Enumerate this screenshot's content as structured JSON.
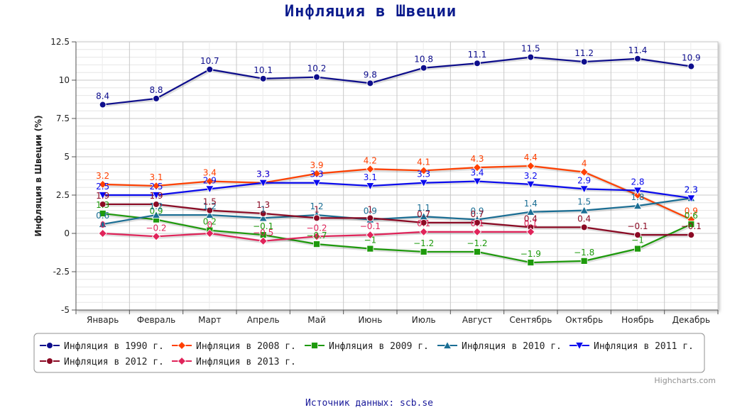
{
  "chart_data": {
    "type": "line",
    "title": "Инфляция в Швеции",
    "ylabel": "Инфляция в Швеции (%)",
    "xlabel": "",
    "ylim": [
      -5,
      12.5
    ],
    "yticks": [
      "12.5",
      "10",
      "7.5",
      "5",
      "2.5",
      "0",
      "-2.5",
      "-5"
    ],
    "categories": [
      "Январь",
      "Февраль",
      "Март",
      "Апрель",
      "Май",
      "Июнь",
      "Июль",
      "Август",
      "Сентябрь",
      "Октябрь",
      "Ноябрь",
      "Декабрь"
    ],
    "grid": true,
    "legend_position": "bottom",
    "series": [
      {
        "name": "Инфляция в 1990 г.",
        "color": "#0d0d8c",
        "marker": "circle",
        "values": [
          8.4,
          8.8,
          10.7,
          10.1,
          10.2,
          9.8,
          10.8,
          11.1,
          11.5,
          11.2,
          11.4,
          10.9
        ],
        "labels": [
          "8.4",
          "8.8",
          "10.7",
          "10.1",
          "10.2",
          "9.8",
          "10.8",
          "11.1",
          "11.5",
          "11.2",
          "11.4",
          "10.9"
        ]
      },
      {
        "name": "Инфляция в 2008 г.",
        "color": "#ff4000",
        "marker": "diamond",
        "values": [
          3.2,
          3.1,
          3.4,
          3.3,
          3.9,
          4.2,
          4.1,
          4.3,
          4.4,
          4.0,
          2.5,
          0.9
        ],
        "labels": [
          "3.2",
          "3.1",
          "3.4",
          "3.3",
          "3.9",
          "4.2",
          "4.1",
          "4.3",
          "4.4",
          "4",
          "",
          "0.9"
        ]
      },
      {
        "name": "Инфляция в 2009 г.",
        "color": "#1e9a0c",
        "marker": "square",
        "values": [
          1.3,
          0.9,
          0.2,
          -0.1,
          -0.7,
          -1.0,
          -1.2,
          -1.2,
          -1.9,
          -1.8,
          -1.0,
          0.6
        ],
        "labels": [
          "1.3",
          "0.9",
          "0.2",
          "−0.1",
          "−0.7",
          "−1",
          "−1.2",
          "−1.2",
          "−1.9",
          "−1.8",
          "−1",
          "0.6"
        ]
      },
      {
        "name": "Инфляция в 2010 г.",
        "color": "#1a6e94",
        "marker": "triangle",
        "values": [
          0.6,
          1.2,
          1.2,
          1.0,
          1.2,
          0.9,
          1.1,
          0.9,
          1.4,
          1.5,
          1.8,
          2.3
        ],
        "labels": [
          "0.6",
          "1.2",
          "1.2",
          "1",
          "1.2",
          "0.9",
          "1.1",
          "0.9",
          "1.4",
          "1.5",
          "1.8",
          "2.3"
        ]
      },
      {
        "name": "Инфляция в 2011 г.",
        "color": "#0a0aee",
        "marker": "triangle-down",
        "values": [
          2.5,
          2.5,
          2.9,
          3.3,
          3.3,
          3.1,
          3.3,
          3.4,
          3.2,
          2.9,
          2.8,
          2.3
        ],
        "labels": [
          "2.5",
          "2.5",
          "2.9",
          "3.3",
          "3.3",
          "3.1",
          "3.3",
          "3.4",
          "3.2",
          "2.9",
          "2.8",
          "2.3"
        ]
      },
      {
        "name": "Инфляция в 2012 г.",
        "color": "#8b0a24",
        "marker": "circle",
        "values": [
          1.9,
          1.9,
          1.5,
          1.3,
          1.0,
          1.0,
          0.7,
          0.7,
          0.4,
          0.4,
          -0.1,
          -0.1
        ],
        "labels": [
          "1.9",
          "1.9",
          "1.5",
          "1.3",
          "1",
          "1",
          "0.7",
          "0.7",
          "0.4",
          "0.4",
          "−0.1",
          "−0.1"
        ]
      },
      {
        "name": "Инфляция в 2013 г.",
        "color": "#e0245a",
        "marker": "diamond",
        "values": [
          0.0,
          -0.2,
          0.0,
          -0.5,
          -0.2,
          -0.1,
          0.1,
          0.1,
          0.1,
          null,
          null,
          null
        ],
        "labels": [
          "0",
          "−0.2",
          "0",
          "−0.5",
          "−0.2",
          "−0.1",
          "0.1",
          "0.1",
          "0.1",
          "",
          "",
          ""
        ]
      }
    ]
  },
  "credits": "Highcharts.com",
  "source": "Источник данных: scb.se"
}
